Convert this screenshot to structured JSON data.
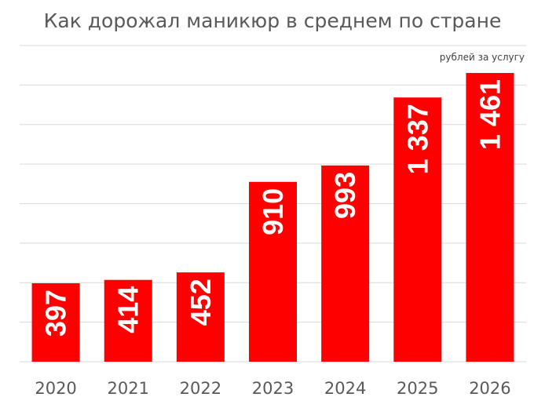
{
  "chart_data": {
    "type": "bar",
    "title": "Как дорожал маникюр в среднем по стране",
    "unit_label": "рублей за услугу",
    "categories": [
      "2020",
      "2021",
      "2022",
      "2023",
      "2024",
      "2025",
      "2026"
    ],
    "values": [
      397,
      414,
      452,
      910,
      993,
      1337,
      1461
    ],
    "value_labels": [
      "397",
      "414",
      "452",
      "910",
      "993",
      "1 337",
      "1 461"
    ],
    "ylim": [
      0,
      1600
    ],
    "grid": true,
    "bar_color": "#ff0000",
    "grid_color": "#d9d9d9",
    "label_rotation": "vertical"
  }
}
